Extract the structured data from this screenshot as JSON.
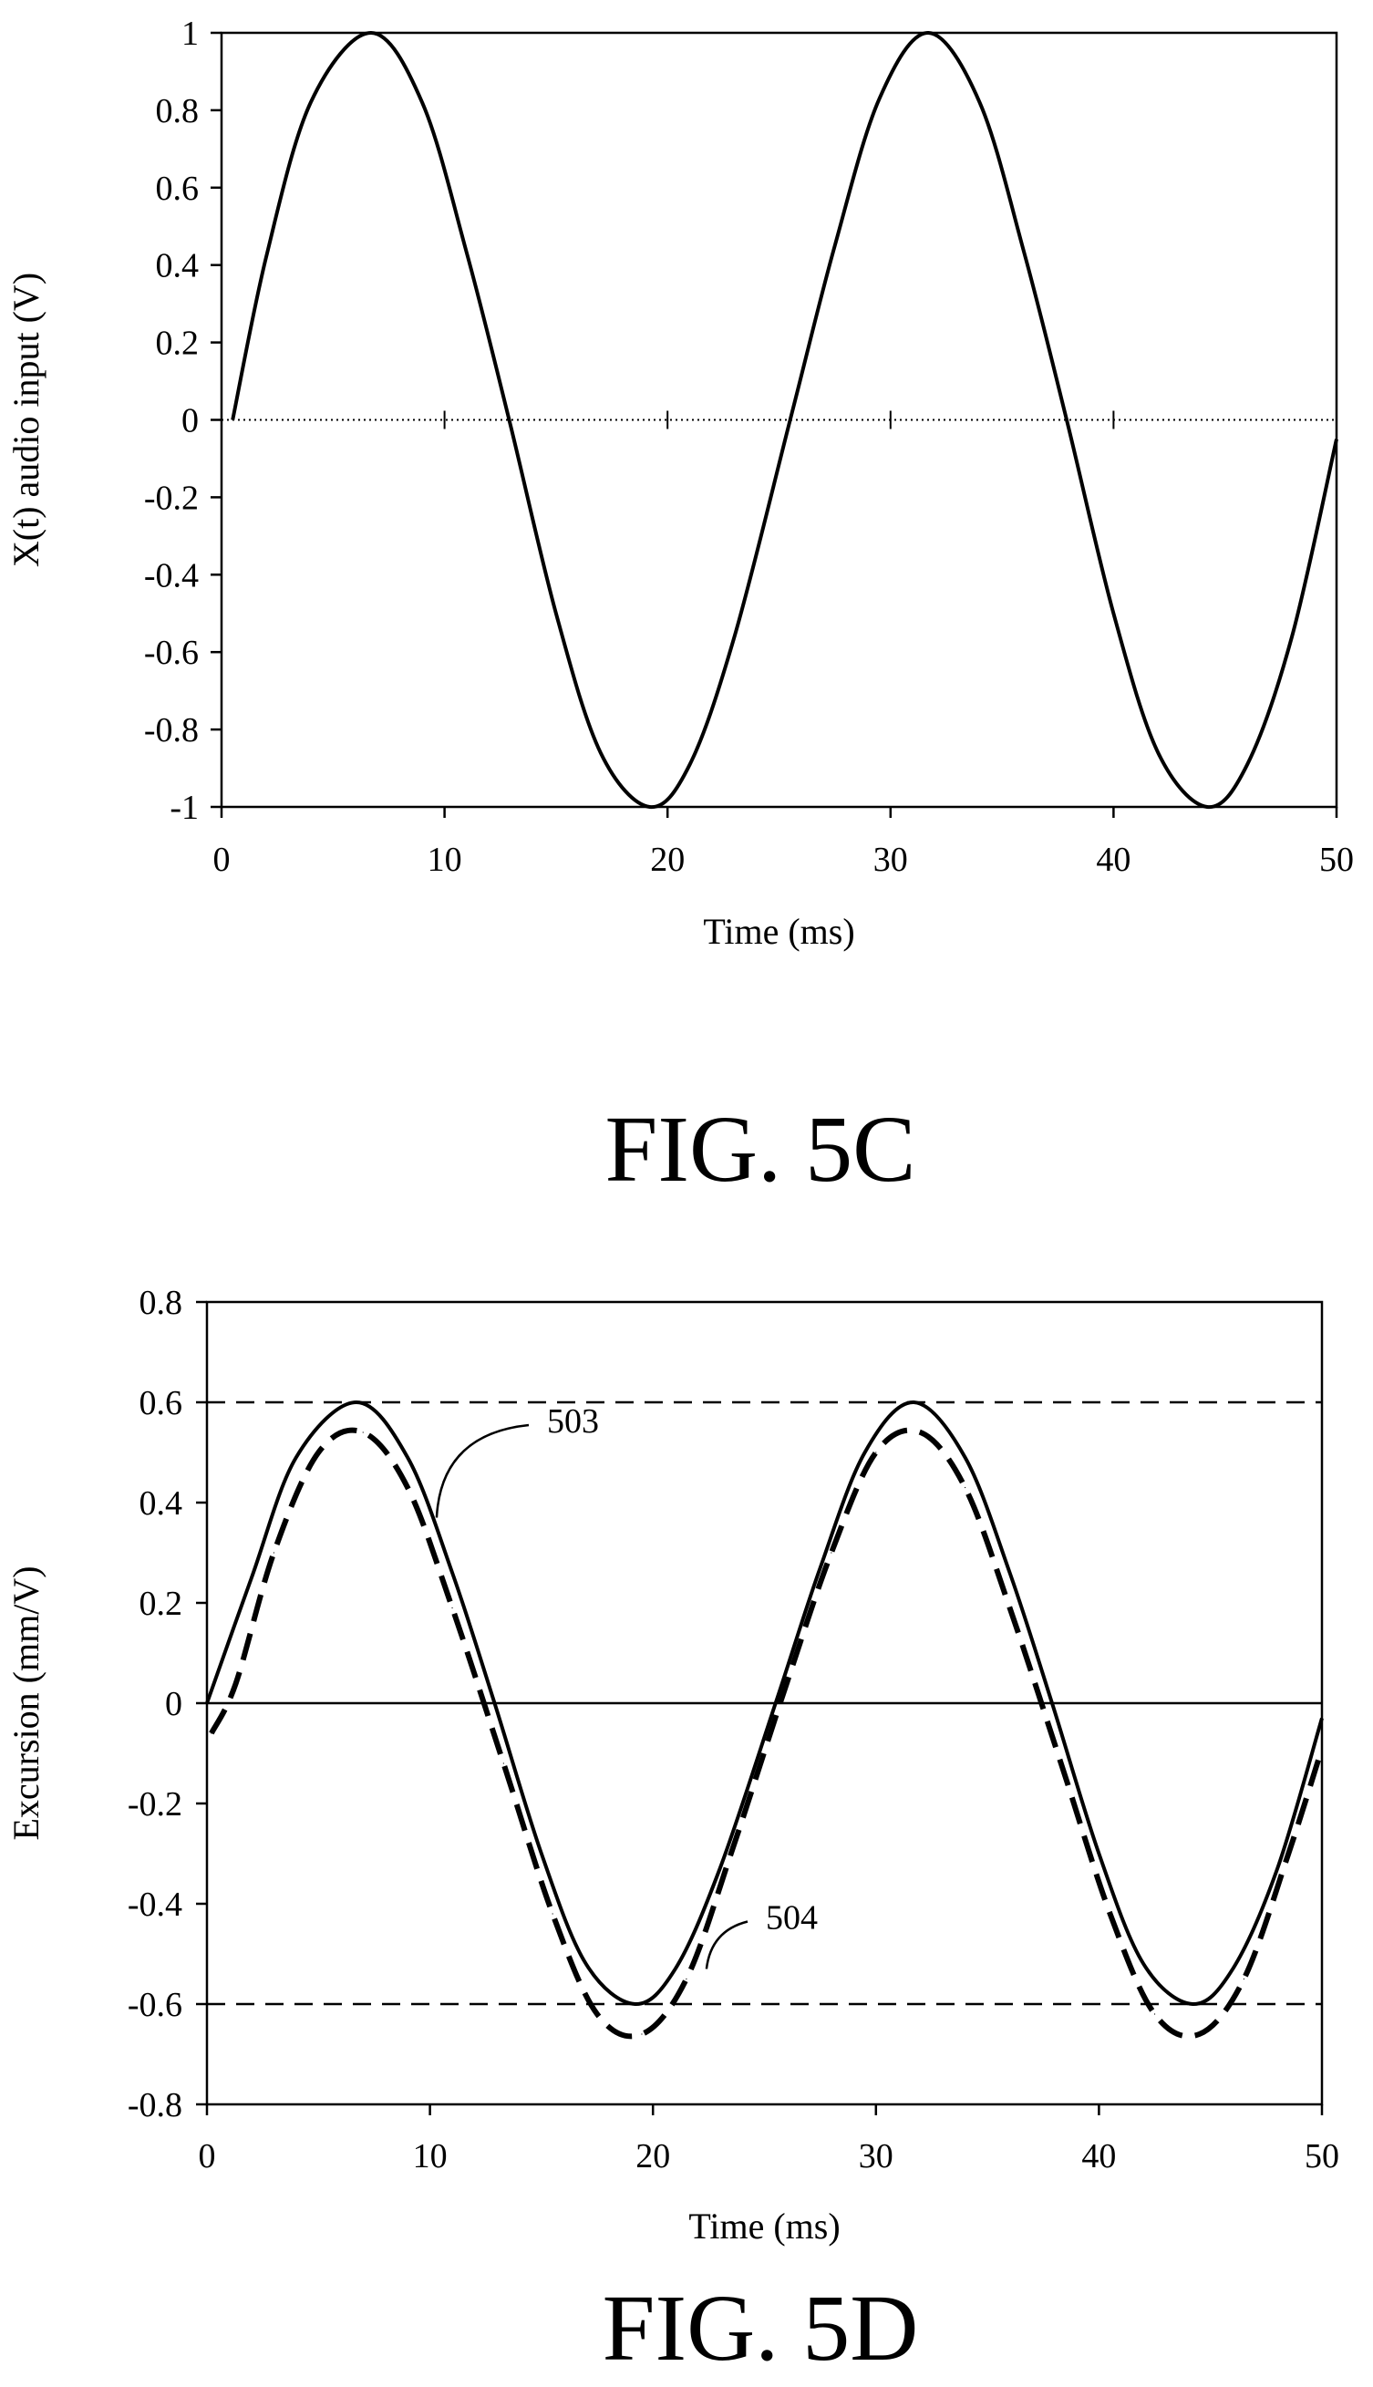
{
  "chart_data": [
    {
      "id": "fig5c",
      "type": "line",
      "caption": "FIG. 5C",
      "xlabel": "Time (ms)",
      "ylabel": "X(t) audio input  (V)",
      "xlim": [
        0,
        50
      ],
      "ylim": [
        -1,
        1
      ],
      "xticks": [
        "0",
        "10",
        "20",
        "30",
        "40",
        "50"
      ],
      "yticks": [
        "1",
        "0.8",
        "0.6",
        "0.4",
        "0.2",
        "0",
        "-0.2",
        "-0.4",
        "-0.6",
        "-0.8",
        "-1"
      ],
      "zero_line": "dotted",
      "series": [
        {
          "style": "solid",
          "color": "#000000",
          "x": [
            0.5,
            2,
            4,
            6.7,
            9,
            11,
            12.9,
            15,
            17,
            19.2,
            21,
            23,
            25.5,
            27.5,
            29.5,
            31.7,
            34,
            36,
            37.9,
            40,
            42,
            44.2,
            46,
            48,
            50
          ],
          "y": [
            0.0,
            0.42,
            0.82,
            1.0,
            0.82,
            0.43,
            0.0,
            -0.5,
            -0.86,
            -1.0,
            -0.89,
            -0.56,
            0.0,
            0.45,
            0.83,
            1.0,
            0.82,
            0.43,
            0.0,
            -0.5,
            -0.86,
            -1.0,
            -0.89,
            -0.56,
            -0.05
          ]
        }
      ]
    },
    {
      "id": "fig5d",
      "type": "line",
      "caption": "FIG. 5D",
      "xlabel": "Time (ms)",
      "ylabel": "Excursion  (mm/V)",
      "xlim": [
        0,
        50
      ],
      "ylim": [
        -0.8,
        0.8
      ],
      "xticks": [
        "0",
        "10",
        "20",
        "30",
        "40",
        "50"
      ],
      "yticks": [
        "0.8",
        "0.6",
        "0.4",
        "0.2",
        "0",
        "-0.2",
        "-0.4",
        "-0.6",
        "-0.8"
      ],
      "limit_lines": [
        0.6,
        -0.6
      ],
      "annotations": [
        {
          "text": "503",
          "points_to": {
            "x": 10.3,
            "y": 0.37
          }
        },
        {
          "text": "504",
          "points_to": {
            "x": 22.4,
            "y": -0.53
          }
        }
      ],
      "series": [
        {
          "style": "solid",
          "color": "#000000",
          "x": [
            0,
            2,
            4,
            6.7,
            9,
            11,
            12.9,
            15,
            17,
            19.2,
            21,
            23,
            25.5,
            27.5,
            29.5,
            31.7,
            34,
            36,
            37.9,
            40,
            42,
            44.2,
            46,
            48,
            50
          ],
          "y": [
            0.0,
            0.25,
            0.49,
            0.6,
            0.49,
            0.26,
            0.0,
            -0.3,
            -0.52,
            -0.6,
            -0.53,
            -0.33,
            0.0,
            0.27,
            0.5,
            0.6,
            0.49,
            0.26,
            0.0,
            -0.3,
            -0.52,
            -0.6,
            -0.53,
            -0.33,
            -0.03
          ]
        },
        {
          "style": "dashed",
          "color": "#000000",
          "x": [
            0.2,
            1.3,
            3,
            5,
            7,
            9,
            11,
            13.3,
            15.5,
            17.5,
            19.5,
            21.5,
            23.5,
            26,
            28,
            30,
            32,
            34,
            36,
            38.3,
            40.5,
            42.5,
            44.5,
            46.5,
            48.5,
            50
          ],
          "y": [
            -0.06,
            0.04,
            0.3,
            0.5,
            0.54,
            0.43,
            0.19,
            -0.12,
            -0.42,
            -0.62,
            -0.66,
            -0.55,
            -0.3,
            0.04,
            0.3,
            0.5,
            0.54,
            0.43,
            0.19,
            -0.12,
            -0.42,
            -0.62,
            -0.66,
            -0.55,
            -0.3,
            -0.09
          ]
        }
      ]
    }
  ]
}
